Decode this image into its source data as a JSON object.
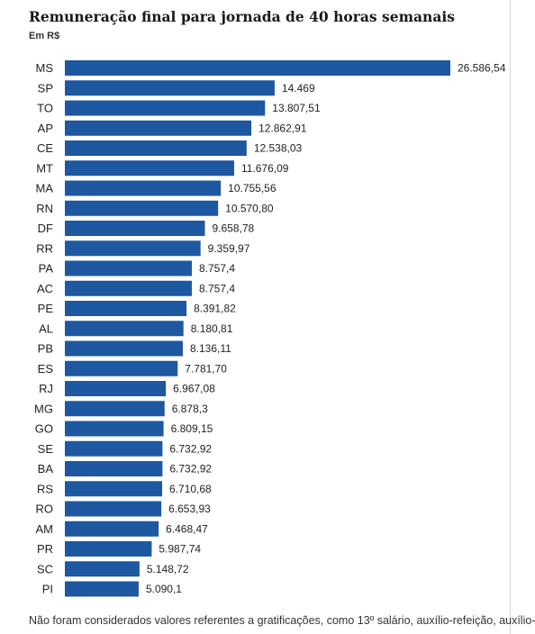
{
  "chart_data": {
    "type": "bar",
    "orientation": "horizontal",
    "title": "Remuneração final para jornada de 40 horas semanais",
    "subtitle": "Em R$",
    "bar_color": "#1d58a0",
    "categories": [
      "MS",
      "SP",
      "TO",
      "AP",
      "CE",
      "MT",
      "MA",
      "RN",
      "DF",
      "RR",
      "PA",
      "AC",
      "PE",
      "AL",
      "PB",
      "ES",
      "RJ",
      "MG",
      "GO",
      "SE",
      "BA",
      "RS",
      "RO",
      "AM",
      "PR",
      "SC",
      "PI"
    ],
    "values": [
      26586.54,
      14469,
      13807.51,
      12862.91,
      12538.03,
      11676.09,
      10755.56,
      10570.8,
      9658.78,
      9359.97,
      8757.4,
      8757.4,
      8391.82,
      8180.81,
      8136.11,
      7781.7,
      6967.08,
      6878.3,
      6809.15,
      6732.92,
      6732.92,
      6710.68,
      6653.93,
      6468.47,
      5987.74,
      5148.72,
      5090.1
    ],
    "value_labels": [
      "26.586,54",
      "14.469",
      "13.807,51",
      "12.862,91",
      "12.538,03",
      "11.676,09",
      "10.755,56",
      "10.570,80",
      "9.658,78",
      "9.359,97",
      "8.757,4",
      "8.757,4",
      "8.391,82",
      "8.180,81",
      "8.136,11",
      "7.781,70",
      "6.967,08",
      "6.878,3",
      "6.809,15",
      "6.732,92",
      "6.732,92",
      "6.710,68",
      "6.653,93",
      "6.468,47",
      "5.987,74",
      "5.148,72",
      "5.090,1"
    ],
    "grid": false,
    "legend": "none"
  },
  "footnote": "Não foram considerados valores referentes a gratificações, como 13º salário, auxílio-refeição, auxílio-"
}
